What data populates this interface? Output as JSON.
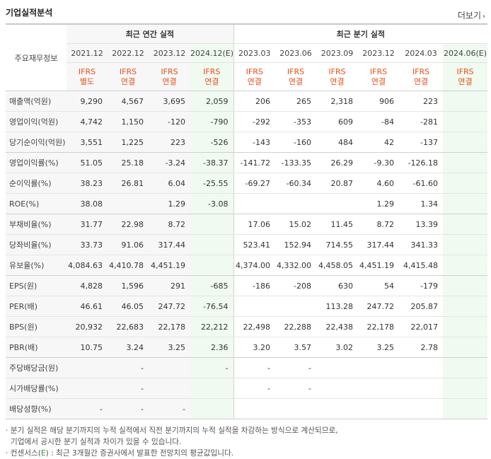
{
  "header": {
    "title": "기업실적분석",
    "more_label": "더보기"
  },
  "table": {
    "row_header_label": "주요재무정보",
    "group_annual": "최근 연간 실적",
    "group_quarter": "최근 분기 실적",
    "columns": [
      {
        "period": "2021.12",
        "basis_top": "IFRS",
        "basis_bottom": "별도"
      },
      {
        "period": "2022.12",
        "basis_top": "IFRS",
        "basis_bottom": "연결"
      },
      {
        "period": "2023.12",
        "basis_top": "IFRS",
        "basis_bottom": "연결"
      },
      {
        "period": "2024.12(E)",
        "basis_top": "IFRS",
        "basis_bottom": "연결"
      },
      {
        "period": "2023.03",
        "basis_top": "IFRS",
        "basis_bottom": "연결"
      },
      {
        "period": "2023.06",
        "basis_top": "IFRS",
        "basis_bottom": "연결"
      },
      {
        "period": "2023.09",
        "basis_top": "IFRS",
        "basis_bottom": "연결"
      },
      {
        "period": "2023.12",
        "basis_top": "IFRS",
        "basis_bottom": "연결"
      },
      {
        "period": "2024.03",
        "basis_top": "IFRS",
        "basis_bottom": "연결"
      },
      {
        "period": "2024.06(E)",
        "basis_top": "IFRS",
        "basis_bottom": "연결"
      }
    ],
    "rows": [
      {
        "label": "매출액(억원)",
        "values": [
          "9,290",
          "4,567",
          "3,695",
          "2,059",
          "206",
          "265",
          "2,318",
          "906",
          "223",
          ""
        ]
      },
      {
        "label": "영업이익(억원)",
        "values": [
          "4,742",
          "1,150",
          "-120",
          "-790",
          "-292",
          "-353",
          "609",
          "-84",
          "-281",
          ""
        ]
      },
      {
        "label": "당기순이익(억원)",
        "values": [
          "3,551",
          "1,225",
          "223",
          "-526",
          "-143",
          "-160",
          "484",
          "42",
          "-137",
          ""
        ]
      },
      {
        "label": "영업이익률(%)",
        "values": [
          "51.05",
          "25.18",
          "-3.24",
          "-38.37",
          "-141.72",
          "-133.35",
          "26.29",
          "-9.30",
          "-126.18",
          ""
        ]
      },
      {
        "label": "순이익률(%)",
        "values": [
          "38.23",
          "26.81",
          "6.04",
          "-25.55",
          "-69.27",
          "-60.34",
          "20.87",
          "4.60",
          "-61.60",
          ""
        ]
      },
      {
        "label": "ROE(%)",
        "values": [
          "38.08",
          "",
          "1.29",
          "-3.08",
          "",
          "",
          "",
          "1.29",
          "1.34",
          ""
        ]
      },
      {
        "label": "부채비율(%)",
        "values": [
          "31.77",
          "22.98",
          "8.72",
          "",
          "17.06",
          "15.02",
          "11.45",
          "8.72",
          "13.39",
          ""
        ]
      },
      {
        "label": "당좌비율(%)",
        "values": [
          "33.73",
          "91.06",
          "317.44",
          "",
          "523.41",
          "152.94",
          "714.55",
          "317.44",
          "341.33",
          ""
        ]
      },
      {
        "label": "유보율(%)",
        "values": [
          "4,084.63",
          "4,410.78",
          "4,451.19",
          "",
          "4,374.00",
          "4,332.00",
          "4,458.05",
          "4,451.19",
          "4,415.48",
          ""
        ]
      },
      {
        "label": "EPS(원)",
        "values": [
          "4,828",
          "1,596",
          "291",
          "-685",
          "-186",
          "-208",
          "630",
          "54",
          "-179",
          ""
        ]
      },
      {
        "label": "PER(배)",
        "values": [
          "46.61",
          "46.05",
          "247.72",
          "-76.54",
          "",
          "",
          "113.28",
          "247.72",
          "205.87",
          ""
        ]
      },
      {
        "label": "BPS(원)",
        "values": [
          "20,932",
          "22,683",
          "22,178",
          "22,212",
          "22,498",
          "22,288",
          "22,438",
          "22,178",
          "22,017",
          ""
        ]
      },
      {
        "label": "PBR(배)",
        "values": [
          "10.75",
          "3.24",
          "3.25",
          "2.36",
          "3.20",
          "3.57",
          "3.02",
          "3.25",
          "2.78",
          ""
        ]
      },
      {
        "label": "주당배당금(원)",
        "values": [
          "",
          "-",
          "",
          "-",
          "-",
          "-",
          "",
          "",
          "",
          ""
        ]
      },
      {
        "label": "시가배당률(%)",
        "values": [
          "",
          "-",
          "",
          "",
          "-",
          "-",
          "",
          "",
          "",
          ""
        ]
      },
      {
        "label": "배당성향(%)",
        "values": [
          "-",
          "-",
          "-",
          "",
          "",
          "",
          "",
          "",
          "",
          ""
        ]
      }
    ]
  },
  "notes": {
    "line1": "· 분기 실적은 해당 분기까지의 누적 실적에서 직전 분기까지의 누적 실적을 차감하는 방식으로 계산되므로,",
    "line2": "기업에서 공시한 분기 실적과 차이가 있을 수 있습니다.",
    "line3_prefix": "· 컨센서스(",
    "line3_mark": "E",
    "line3_suffix": ") : 최근 3개월간 증권사에서 발표한 전망치의 평균값입니다."
  }
}
